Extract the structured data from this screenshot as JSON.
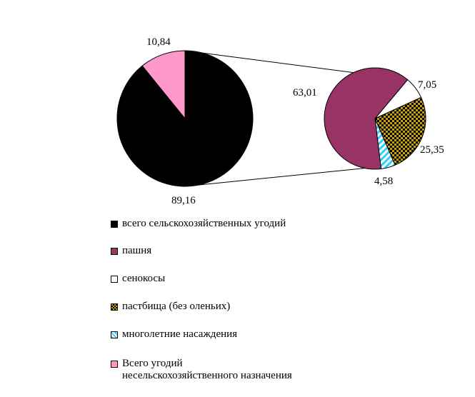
{
  "chart_data": {
    "type": "pie",
    "main_pie": {
      "slices": [
        {
          "key": "agri",
          "value": 89.16,
          "label": "89,16"
        },
        {
          "key": "nonagri",
          "value": 10.84,
          "label": "10,84"
        }
      ]
    },
    "breakdown_pie": {
      "slices": [
        {
          "key": "arable",
          "value": 63.01,
          "label": "63,01"
        },
        {
          "key": "hay",
          "value": 7.05,
          "label": "7,05"
        },
        {
          "key": "pasture",
          "value": 25.35,
          "label": "25,35"
        },
        {
          "key": "perennial",
          "value": 4.58,
          "label": "4,58"
        }
      ]
    },
    "legend": [
      {
        "key": "agri",
        "label": "всего сельскохозяйственных угодий",
        "color": "#000000"
      },
      {
        "key": "arable",
        "label": "пашня",
        "color": "#993366"
      },
      {
        "key": "hay",
        "label": "сенокосы",
        "color": "#ffffff"
      },
      {
        "key": "pasture",
        "label": "пастбища (без оленьих)",
        "color": "#c8a000"
      },
      {
        "key": "perennial",
        "label": "многолетние насаждения",
        "color": "#33ccff"
      },
      {
        "key": "nonagri",
        "label": "Всего угодий\nнесельскохозяйственного назначения",
        "color": "#ff99cc"
      }
    ]
  }
}
